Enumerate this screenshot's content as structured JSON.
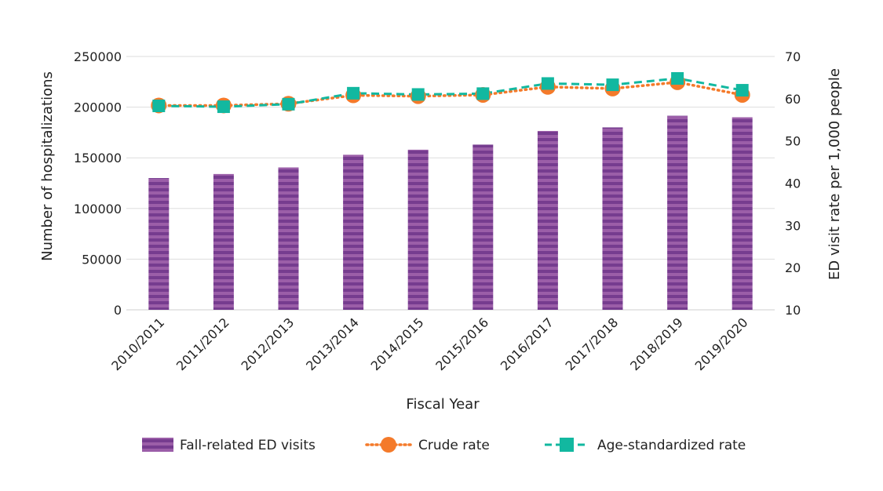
{
  "chart_data": {
    "type": "bar+line",
    "xlabel": "Fiscal Year",
    "ylabel_left": "Number of hospitalizations",
    "ylabel_right": "ED visit rate per 1,000 people",
    "categories": [
      "2010/2011",
      "2011/2012",
      "2012/2013",
      "2013/2014",
      "2014/2015",
      "2015/2016",
      "2016/2017",
      "2017/2018",
      "2018/2019",
      "2019/2020"
    ],
    "ylim_left": [
      0,
      250000
    ],
    "yticks_left": [
      "0",
      "50000",
      "100000",
      "150000",
      "200000",
      "250000"
    ],
    "ylim_right": [
      10,
      70
    ],
    "yticks_right": [
      "10",
      "20",
      "30",
      "40",
      "50",
      "60",
      "70"
    ],
    "grid": true,
    "legend_position": "bottom",
    "series": [
      {
        "name": "Fall-related ED visits",
        "type": "bar",
        "axis": "left",
        "color": "#7a3f93",
        "values": [
          130000,
          134000,
          140500,
          153000,
          158000,
          163000,
          176500,
          180000,
          191500,
          190000
        ]
      },
      {
        "name": "Crude rate",
        "type": "line",
        "axis": "right",
        "color": "#f47a2a",
        "marker": "circle",
        "line_style": "dotted",
        "values": [
          58.4,
          58.4,
          58.8,
          60.8,
          60.6,
          60.9,
          62.8,
          62.4,
          63.9,
          60.9
        ]
      },
      {
        "name": "Age-standardized rate",
        "type": "line",
        "axis": "right",
        "color": "#12b8a0",
        "marker": "square",
        "line_style": "dashed",
        "values": [
          58.3,
          58.1,
          58.7,
          61.3,
          61.0,
          61.2,
          63.6,
          63.3,
          64.8,
          62.0
        ]
      }
    ]
  }
}
